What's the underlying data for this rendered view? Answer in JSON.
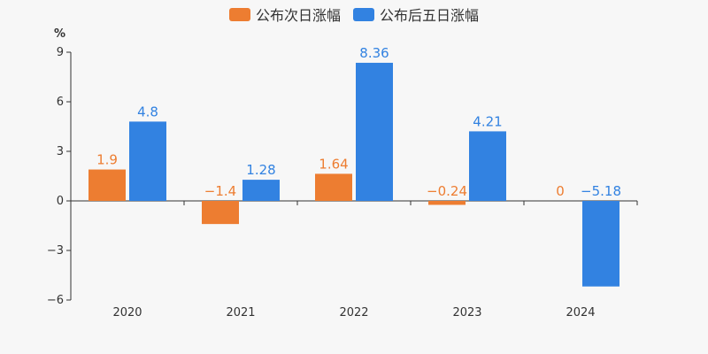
{
  "chart_data": {
    "type": "bar",
    "categories": [
      "2020",
      "2021",
      "2022",
      "2023",
      "2024"
    ],
    "series": [
      {
        "name": "公布次日涨幅",
        "color": "#ed7d31",
        "values": [
          1.9,
          -1.4,
          1.64,
          -0.24,
          0
        ]
      },
      {
        "name": "公布后五日涨幅",
        "color": "#3282e1",
        "values": [
          4.8,
          1.28,
          8.36,
          4.21,
          -5.18
        ]
      }
    ],
    "ylabel": "%",
    "ylim": [
      -6,
      9
    ],
    "yticks": [
      9,
      6,
      3,
      0,
      -3,
      -6
    ],
    "ytick_labels": [
      "9",
      "6",
      "3",
      "0",
      "−3",
      "−6"
    ],
    "data_labels": [
      [
        "1.9",
        "−1.4",
        "1.64",
        "−0.24",
        "0"
      ],
      [
        "4.8",
        "1.28",
        "8.36",
        "4.21",
        "−5.18"
      ]
    ],
    "grid": false,
    "legend_position": "top-center"
  }
}
